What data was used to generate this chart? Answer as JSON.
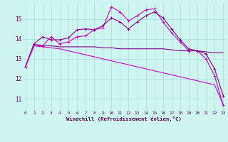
{
  "xlabel": "Windchill (Refroidissement éolien,°C)",
  "x_ticks": [
    0,
    1,
    2,
    3,
    4,
    5,
    6,
    7,
    8,
    9,
    10,
    11,
    12,
    13,
    14,
    15,
    16,
    17,
    18,
    19,
    20,
    21,
    22,
    23
  ],
  "y_ticks": [
    11,
    12,
    13,
    14,
    15
  ],
  "ylim": [
    10.4,
    15.8
  ],
  "xlim": [
    -0.3,
    23.3
  ],
  "bg_color": "#cef5f0",
  "grid_color": "#aadddd",
  "line_color1": "#cc00cc",
  "line_color2": "#880088",
  "line1": [
    12.6,
    13.75,
    13.65,
    14.1,
    13.75,
    13.85,
    14.1,
    14.15,
    14.45,
    14.55,
    15.6,
    15.35,
    14.9,
    15.15,
    15.45,
    15.5,
    14.85,
    14.3,
    13.85,
    13.4,
    13.4,
    13.0,
    12.15,
    10.7
  ],
  "line2": [
    12.6,
    13.75,
    14.1,
    13.95,
    13.95,
    14.05,
    14.45,
    14.5,
    14.45,
    14.65,
    15.05,
    14.85,
    14.5,
    14.85,
    15.15,
    15.35,
    15.05,
    14.5,
    13.95,
    13.5,
    13.4,
    13.25,
    12.5,
    11.15
  ],
  "line3": [
    12.6,
    13.65,
    13.65,
    13.65,
    13.6,
    13.6,
    13.6,
    13.6,
    13.6,
    13.55,
    13.55,
    13.5,
    13.5,
    13.5,
    13.5,
    13.5,
    13.5,
    13.45,
    13.4,
    13.4,
    13.4,
    13.35,
    13.3,
    13.3
  ],
  "line4": [
    12.6,
    13.65,
    13.6,
    13.55,
    13.5,
    13.4,
    13.3,
    13.2,
    13.1,
    13.0,
    12.9,
    12.8,
    12.7,
    12.6,
    12.5,
    12.4,
    12.3,
    12.2,
    12.1,
    12.0,
    11.9,
    11.8,
    11.7,
    10.7
  ]
}
